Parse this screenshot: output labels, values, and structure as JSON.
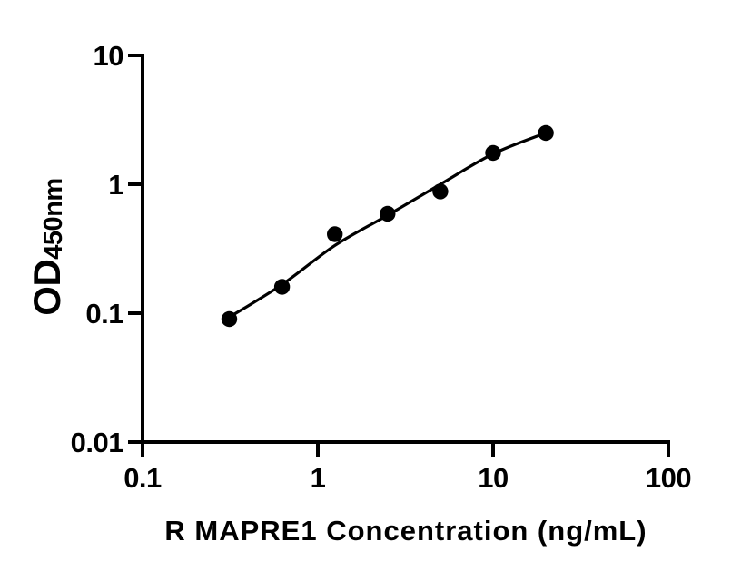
{
  "figure": {
    "background_color": "#ffffff",
    "axis_color": "#000000",
    "marker_color": "#000000",
    "curve_color": "#000000"
  },
  "chart_data": {
    "type": "scatter",
    "title": "",
    "xlabel": "R MAPRE1 Concentration (ng/mL)",
    "ylabel": "OD450nm",
    "ylabel_main": "OD",
    "ylabel_sub": "450nm",
    "xscale": "log",
    "yscale": "log",
    "xlim": [
      0.1,
      100
    ],
    "ylim": [
      0.01,
      10
    ],
    "x_ticks": [
      0.1,
      1,
      10,
      100
    ],
    "x_tick_labels": [
      "0.1",
      "1",
      "10",
      "100"
    ],
    "y_ticks": [
      0.01,
      0.1,
      1,
      10
    ],
    "y_tick_labels": [
      "0.01",
      "0.1",
      "1",
      "10"
    ],
    "grid": false,
    "legend": false,
    "series": [
      {
        "name": "standard-curve-points",
        "marker": "filled-circle",
        "color": "#000000",
        "x": [
          0.3125,
          0.625,
          1.25,
          2.5,
          5,
          10,
          20
        ],
        "y": [
          0.09,
          0.16,
          0.41,
          0.59,
          0.88,
          1.75,
          2.5
        ]
      }
    ],
    "fit_curve": {
      "name": "four-parameter-fit-line",
      "color": "#000000",
      "x": [
        0.3125,
        0.625,
        1.25,
        2.5,
        5,
        10,
        20
      ],
      "y": [
        0.093,
        0.167,
        0.335,
        0.575,
        1.0,
        1.72,
        2.5
      ]
    }
  }
}
